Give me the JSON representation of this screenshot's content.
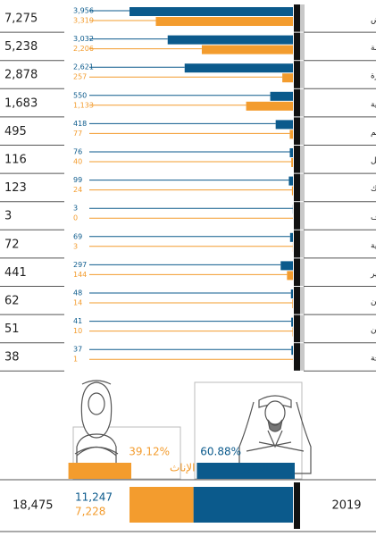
{
  "chart_data": {
    "type": "bar",
    "categories": [
      "الرياض",
      "مكة المكرمة",
      "المدينة المنورة",
      "المنطقة الشرقية",
      "القصيم",
      "حائل",
      "تبوك",
      "الجوف",
      "الحدود الشمالية",
      "عسير",
      "جازان",
      "نجران",
      "الباحة"
    ],
    "series": [
      {
        "name": "الذكور",
        "color": "#0b5a8c",
        "values": [
          3956,
          3032,
          2621,
          550,
          418,
          76,
          99,
          3,
          69,
          297,
          48,
          41,
          37
        ],
        "value_labels": [
          "3,956",
          "3,032",
          "2,621",
          "550",
          "418",
          "76",
          "99",
          "3",
          "69",
          "297",
          "48",
          "41",
          "37"
        ]
      },
      {
        "name": "الإناث",
        "color": "#f39c2e",
        "values": [
          3319,
          2206,
          257,
          1133,
          77,
          40,
          24,
          0,
          3,
          144,
          14,
          10,
          1
        ],
        "value_labels": [
          "3,319",
          "2,206",
          "257",
          "1,133",
          "77",
          "40",
          "24",
          "0",
          "3",
          "144",
          "14",
          "10",
          "1"
        ]
      }
    ],
    "totals": {
      "values": [
        7275,
        5238,
        2878,
        1683,
        495,
        116,
        123,
        3,
        72,
        441,
        62,
        51,
        38
      ],
      "value_labels": [
        "7,275",
        "5,238",
        "2,878",
        "1,683",
        "495",
        "116",
        "123",
        "3",
        "72",
        "441",
        "62",
        "51",
        "38"
      ]
    },
    "summary": {
      "year": "2019",
      "total": {
        "value": 18475,
        "label": "18,475"
      },
      "values": [
        11247,
        7228
      ],
      "value_labels": [
        "11,247",
        "7,228"
      ],
      "percentages": [
        60.88,
        39.12
      ],
      "percentage_labels": [
        "60.88%",
        "39.12%"
      ]
    }
  }
}
